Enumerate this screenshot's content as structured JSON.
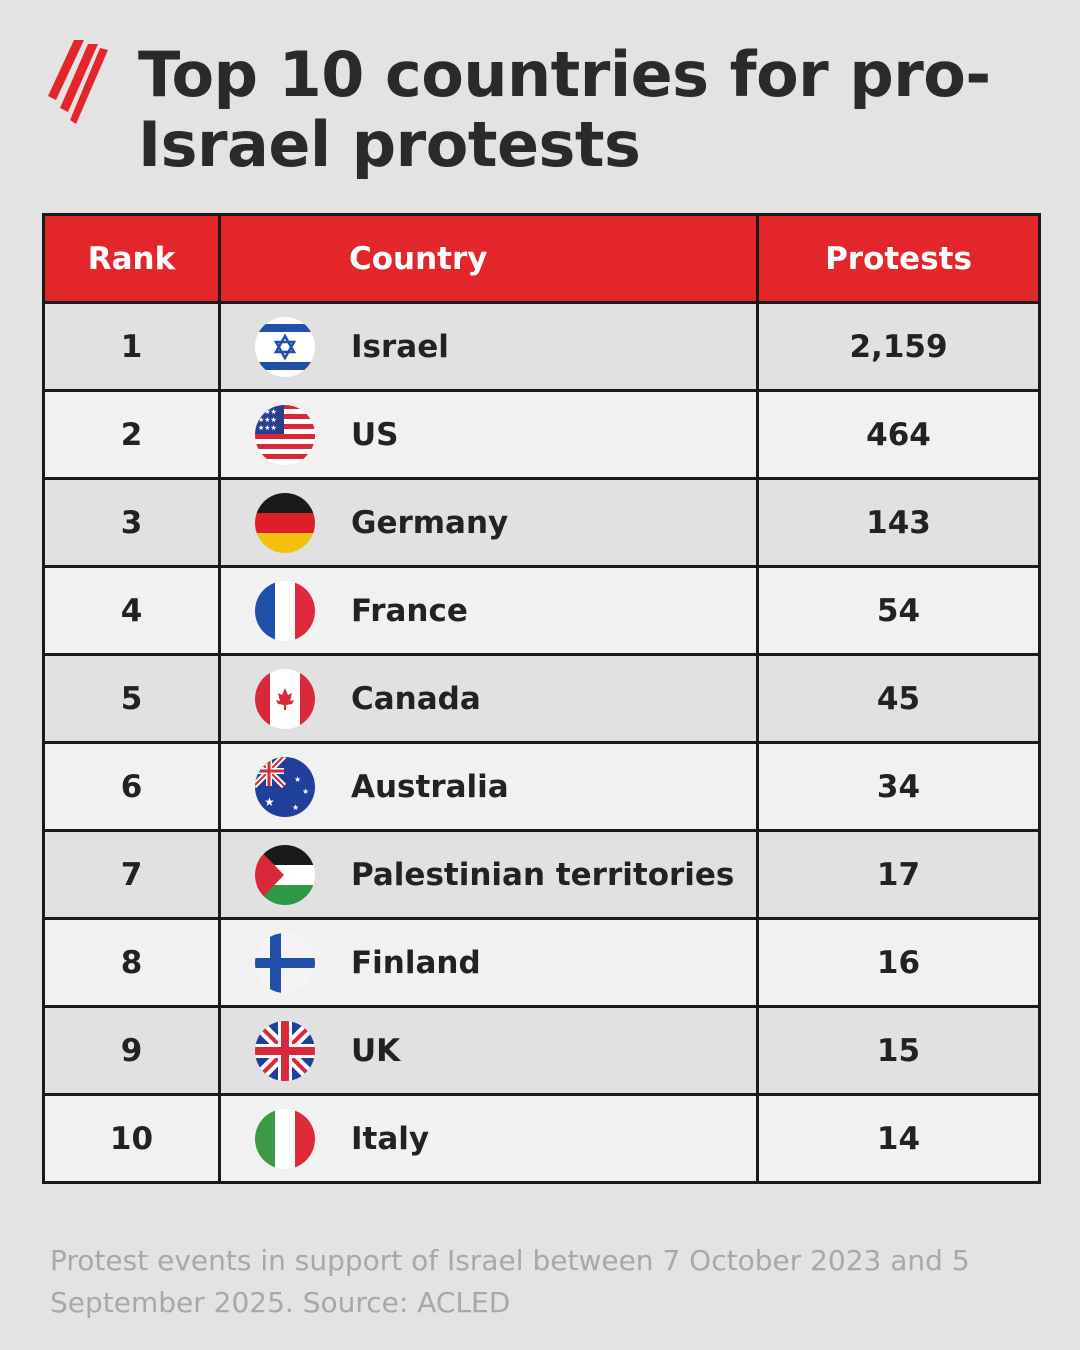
{
  "title": "Top 10 countries for pro-Israel protests",
  "logo": {
    "icon": "sbs-logo-icon",
    "color": "#e3262a"
  },
  "table": {
    "headers": {
      "rank": "Rank",
      "country": "Country",
      "protests": "Protests"
    },
    "rows": [
      {
        "rank": "1",
        "country": "Israel",
        "protests": "2,159",
        "flag": "israel-flag-icon"
      },
      {
        "rank": "2",
        "country": "US",
        "protests": "464",
        "flag": "us-flag-icon"
      },
      {
        "rank": "3",
        "country": "Germany",
        "protests": "143",
        "flag": "germany-flag-icon"
      },
      {
        "rank": "4",
        "country": "France",
        "protests": "54",
        "flag": "france-flag-icon"
      },
      {
        "rank": "5",
        "country": "Canada",
        "protests": "45",
        "flag": "canada-flag-icon"
      },
      {
        "rank": "6",
        "country": "Australia",
        "protests": "34",
        "flag": "australia-flag-icon"
      },
      {
        "rank": "7",
        "country": "Palestinian territories",
        "protests": "17",
        "flag": "palestine-flag-icon"
      },
      {
        "rank": "8",
        "country": "Finland",
        "protests": "16",
        "flag": "finland-flag-icon"
      },
      {
        "rank": "9",
        "country": "UK",
        "protests": "15",
        "flag": "uk-flag-icon"
      },
      {
        "rank": "10",
        "country": "Italy",
        "protests": "14",
        "flag": "italy-flag-icon"
      }
    ]
  },
  "footnote": "Protest events in support of Israel between 7 October 2023 and 5 September 2025. Source: ACLED",
  "colors": {
    "header_red": "#e3262a",
    "background": "#e3e3e3",
    "row_dark": "#e1e1e1",
    "row_light": "#f1f1f1"
  },
  "chart_data": {
    "type": "table",
    "title": "Top 10 countries for pro-Israel protests",
    "columns": [
      "Rank",
      "Country",
      "Protests"
    ],
    "rows": [
      [
        1,
        "Israel",
        2159
      ],
      [
        2,
        "US",
        464
      ],
      [
        3,
        "Germany",
        143
      ],
      [
        4,
        "France",
        54
      ],
      [
        5,
        "Canada",
        45
      ],
      [
        6,
        "Australia",
        34
      ],
      [
        7,
        "Palestinian territories",
        17
      ],
      [
        8,
        "Finland",
        16
      ],
      [
        9,
        "UK",
        15
      ],
      [
        10,
        "Italy",
        14
      ]
    ],
    "note": "Protest events in support of Israel between 7 October 2023 and 5 September 2025. Source: ACLED"
  }
}
